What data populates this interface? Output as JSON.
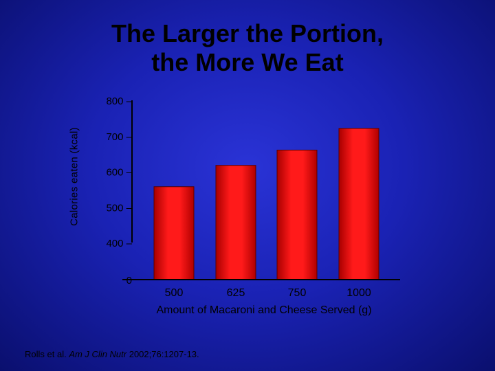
{
  "slide": {
    "title_line1": "The Larger the Portion,",
    "title_line2": "the More We Eat",
    "citation_prefix": "Rolls et al. ",
    "citation_journal": "Am J Clin Nutr",
    "citation_rest": " 2002;76:1207-13."
  },
  "chart_data": {
    "type": "bar",
    "categories": [
      "500",
      "625",
      "750",
      "1000"
    ],
    "values": [
      557,
      617,
      660,
      721
    ],
    "y_ticks": [
      0,
      400,
      500,
      600,
      700,
      800
    ],
    "y_tick_labels": [
      "0",
      "400 –",
      "500 –",
      "600 –",
      "700 –",
      "800 –"
    ],
    "ylim": [
      0,
      800
    ],
    "axis_break": true,
    "xlabel": "Amount of Macaroni and Cheese Served (g)",
    "ylabel": "Calories eaten  (kcal)",
    "bar_color": "#e00000",
    "grid": false,
    "legend": "none"
  }
}
